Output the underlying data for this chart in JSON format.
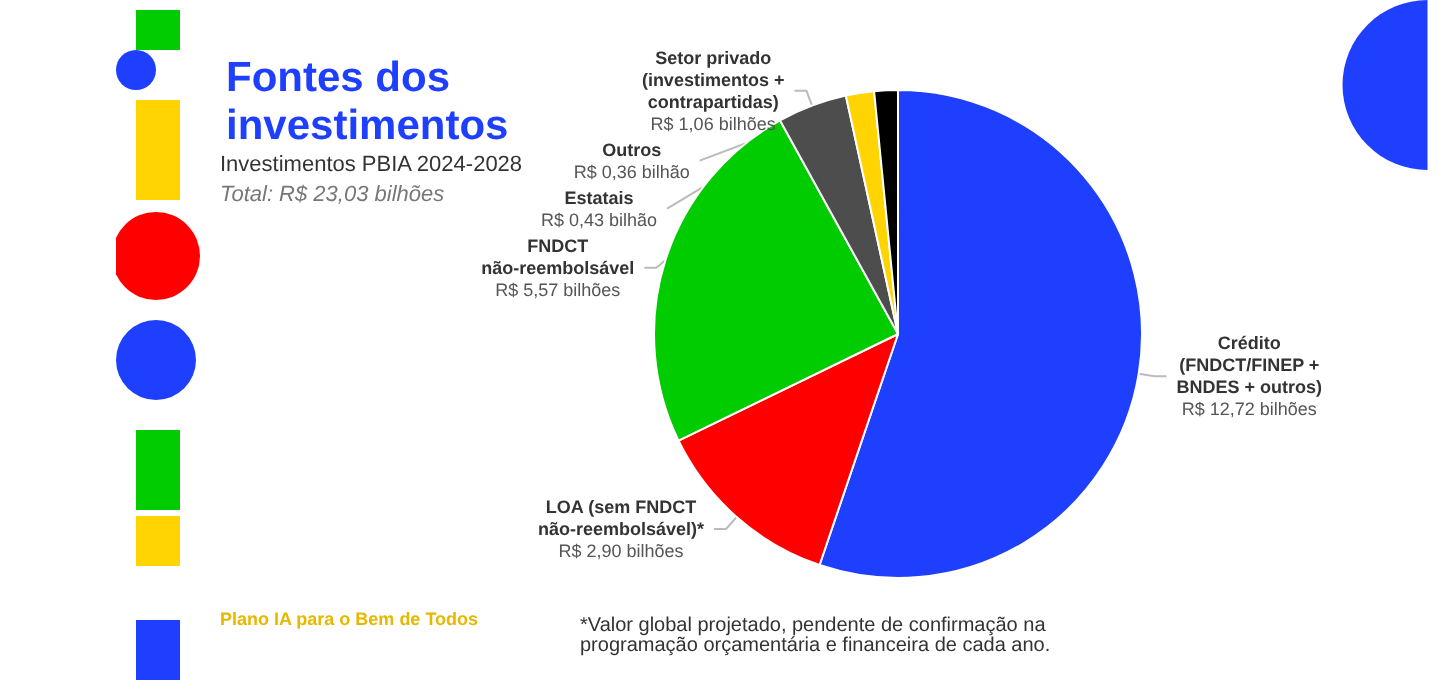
{
  "chart_data": {
    "type": "pie",
    "title": "Fontes dos investimentos",
    "subtitle": "Investimentos PBIA 2024-2028",
    "categories": [
      "Crédito (FNDCT/FINEP + BNDES + outros)",
      "LOA (sem FNDCT não-reembolsável)*",
      "FNDCT não-reembolsável",
      "Setor privado (investimentos + contrapartidas)",
      "Estatais",
      "Outros"
    ],
    "values": [
      12.72,
      2.9,
      5.57,
      1.06,
      0.43,
      0.36
    ],
    "colors": [
      "#1f3fff",
      "#ff0000",
      "#00cc00",
      "#4d4d4d",
      "#ffd400",
      "#000000"
    ],
    "value_labels": [
      "R$ 12,72 bilhões",
      "R$ 2,90 bilhões",
      "R$ 5,57 bilhões",
      "R$ 1,06 bilhões",
      "R$ 0,43 bilhão",
      "R$ 0,36 bilhão"
    ],
    "annotations": [
      "Total: R$ 23,03 bilhões",
      "*Valor global projetado, pendente de confirmação na programação orçamentária e financeira de cada ano.",
      "Plano IA para o Bem de Todos"
    ],
    "legend": false
  }
}
